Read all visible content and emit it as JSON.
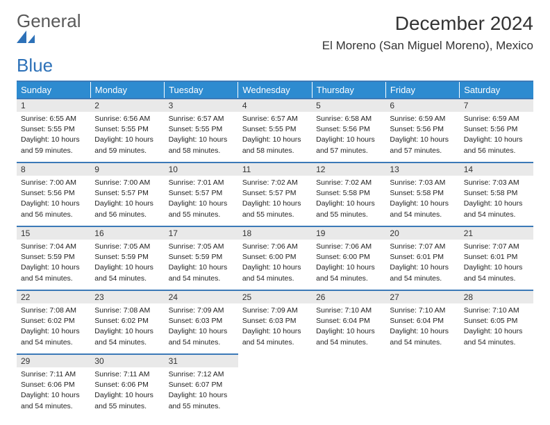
{
  "brand": {
    "part1": "General",
    "part2": "Blue"
  },
  "header": {
    "month_title": "December 2024",
    "location": "El Moreno (San Miguel Moreno), Mexico"
  },
  "colors": {
    "header_bg": "#2d8bd0",
    "row_border": "#3b79b7",
    "daynum_bg": "#e9e9e9",
    "brand_gray": "#595959",
    "brand_blue": "#2d71b8"
  },
  "weekdays": [
    "Sunday",
    "Monday",
    "Tuesday",
    "Wednesday",
    "Thursday",
    "Friday",
    "Saturday"
  ],
  "weeks": [
    [
      {
        "n": "1",
        "sr": "Sunrise: 6:55 AM",
        "ss": "Sunset: 5:55 PM",
        "dl1": "Daylight: 10 hours",
        "dl2": "and 59 minutes."
      },
      {
        "n": "2",
        "sr": "Sunrise: 6:56 AM",
        "ss": "Sunset: 5:55 PM",
        "dl1": "Daylight: 10 hours",
        "dl2": "and 59 minutes."
      },
      {
        "n": "3",
        "sr": "Sunrise: 6:57 AM",
        "ss": "Sunset: 5:55 PM",
        "dl1": "Daylight: 10 hours",
        "dl2": "and 58 minutes."
      },
      {
        "n": "4",
        "sr": "Sunrise: 6:57 AM",
        "ss": "Sunset: 5:55 PM",
        "dl1": "Daylight: 10 hours",
        "dl2": "and 58 minutes."
      },
      {
        "n": "5",
        "sr": "Sunrise: 6:58 AM",
        "ss": "Sunset: 5:56 PM",
        "dl1": "Daylight: 10 hours",
        "dl2": "and 57 minutes."
      },
      {
        "n": "6",
        "sr": "Sunrise: 6:59 AM",
        "ss": "Sunset: 5:56 PM",
        "dl1": "Daylight: 10 hours",
        "dl2": "and 57 minutes."
      },
      {
        "n": "7",
        "sr": "Sunrise: 6:59 AM",
        "ss": "Sunset: 5:56 PM",
        "dl1": "Daylight: 10 hours",
        "dl2": "and 56 minutes."
      }
    ],
    [
      {
        "n": "8",
        "sr": "Sunrise: 7:00 AM",
        "ss": "Sunset: 5:56 PM",
        "dl1": "Daylight: 10 hours",
        "dl2": "and 56 minutes."
      },
      {
        "n": "9",
        "sr": "Sunrise: 7:00 AM",
        "ss": "Sunset: 5:57 PM",
        "dl1": "Daylight: 10 hours",
        "dl2": "and 56 minutes."
      },
      {
        "n": "10",
        "sr": "Sunrise: 7:01 AM",
        "ss": "Sunset: 5:57 PM",
        "dl1": "Daylight: 10 hours",
        "dl2": "and 55 minutes."
      },
      {
        "n": "11",
        "sr": "Sunrise: 7:02 AM",
        "ss": "Sunset: 5:57 PM",
        "dl1": "Daylight: 10 hours",
        "dl2": "and 55 minutes."
      },
      {
        "n": "12",
        "sr": "Sunrise: 7:02 AM",
        "ss": "Sunset: 5:58 PM",
        "dl1": "Daylight: 10 hours",
        "dl2": "and 55 minutes."
      },
      {
        "n": "13",
        "sr": "Sunrise: 7:03 AM",
        "ss": "Sunset: 5:58 PM",
        "dl1": "Daylight: 10 hours",
        "dl2": "and 54 minutes."
      },
      {
        "n": "14",
        "sr": "Sunrise: 7:03 AM",
        "ss": "Sunset: 5:58 PM",
        "dl1": "Daylight: 10 hours",
        "dl2": "and 54 minutes."
      }
    ],
    [
      {
        "n": "15",
        "sr": "Sunrise: 7:04 AM",
        "ss": "Sunset: 5:59 PM",
        "dl1": "Daylight: 10 hours",
        "dl2": "and 54 minutes."
      },
      {
        "n": "16",
        "sr": "Sunrise: 7:05 AM",
        "ss": "Sunset: 5:59 PM",
        "dl1": "Daylight: 10 hours",
        "dl2": "and 54 minutes."
      },
      {
        "n": "17",
        "sr": "Sunrise: 7:05 AM",
        "ss": "Sunset: 5:59 PM",
        "dl1": "Daylight: 10 hours",
        "dl2": "and 54 minutes."
      },
      {
        "n": "18",
        "sr": "Sunrise: 7:06 AM",
        "ss": "Sunset: 6:00 PM",
        "dl1": "Daylight: 10 hours",
        "dl2": "and 54 minutes."
      },
      {
        "n": "19",
        "sr": "Sunrise: 7:06 AM",
        "ss": "Sunset: 6:00 PM",
        "dl1": "Daylight: 10 hours",
        "dl2": "and 54 minutes."
      },
      {
        "n": "20",
        "sr": "Sunrise: 7:07 AM",
        "ss": "Sunset: 6:01 PM",
        "dl1": "Daylight: 10 hours",
        "dl2": "and 54 minutes."
      },
      {
        "n": "21",
        "sr": "Sunrise: 7:07 AM",
        "ss": "Sunset: 6:01 PM",
        "dl1": "Daylight: 10 hours",
        "dl2": "and 54 minutes."
      }
    ],
    [
      {
        "n": "22",
        "sr": "Sunrise: 7:08 AM",
        "ss": "Sunset: 6:02 PM",
        "dl1": "Daylight: 10 hours",
        "dl2": "and 54 minutes."
      },
      {
        "n": "23",
        "sr": "Sunrise: 7:08 AM",
        "ss": "Sunset: 6:02 PM",
        "dl1": "Daylight: 10 hours",
        "dl2": "and 54 minutes."
      },
      {
        "n": "24",
        "sr": "Sunrise: 7:09 AM",
        "ss": "Sunset: 6:03 PM",
        "dl1": "Daylight: 10 hours",
        "dl2": "and 54 minutes."
      },
      {
        "n": "25",
        "sr": "Sunrise: 7:09 AM",
        "ss": "Sunset: 6:03 PM",
        "dl1": "Daylight: 10 hours",
        "dl2": "and 54 minutes."
      },
      {
        "n": "26",
        "sr": "Sunrise: 7:10 AM",
        "ss": "Sunset: 6:04 PM",
        "dl1": "Daylight: 10 hours",
        "dl2": "and 54 minutes."
      },
      {
        "n": "27",
        "sr": "Sunrise: 7:10 AM",
        "ss": "Sunset: 6:04 PM",
        "dl1": "Daylight: 10 hours",
        "dl2": "and 54 minutes."
      },
      {
        "n": "28",
        "sr": "Sunrise: 7:10 AM",
        "ss": "Sunset: 6:05 PM",
        "dl1": "Daylight: 10 hours",
        "dl2": "and 54 minutes."
      }
    ],
    [
      {
        "n": "29",
        "sr": "Sunrise: 7:11 AM",
        "ss": "Sunset: 6:06 PM",
        "dl1": "Daylight: 10 hours",
        "dl2": "and 54 minutes."
      },
      {
        "n": "30",
        "sr": "Sunrise: 7:11 AM",
        "ss": "Sunset: 6:06 PM",
        "dl1": "Daylight: 10 hours",
        "dl2": "and 55 minutes."
      },
      {
        "n": "31",
        "sr": "Sunrise: 7:12 AM",
        "ss": "Sunset: 6:07 PM",
        "dl1": "Daylight: 10 hours",
        "dl2": "and 55 minutes."
      },
      null,
      null,
      null,
      null
    ]
  ]
}
